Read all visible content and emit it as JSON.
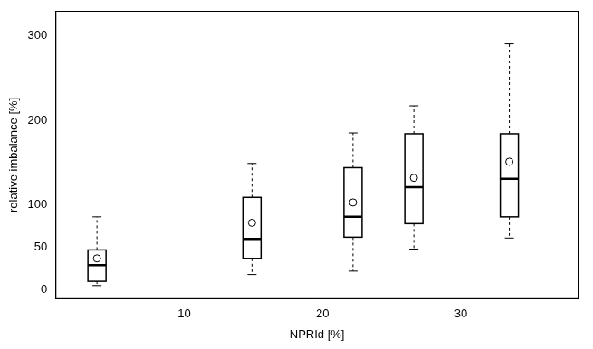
{
  "chart_data": {
    "type": "box",
    "x_label": "NPRId [%]",
    "y_label": "relative imbalance [%]",
    "x": [
      3.7,
      14.9,
      22.2,
      26.6,
      33.5
    ],
    "whisker_low": [
      5,
      18,
      22,
      48,
      61
    ],
    "q1": [
      10,
      37,
      62,
      78,
      86
    ],
    "median": [
      29,
      60,
      86,
      121,
      131
    ],
    "q3": [
      47,
      109,
      144,
      184,
      184
    ],
    "whisker_high": [
      86,
      149,
      185,
      217,
      290
    ],
    "mean": [
      37,
      79,
      103,
      132,
      151
    ],
    "color": "#000000",
    "marker": "circle",
    "xlim": [
      0.7,
      38.5
    ],
    "xticks": [
      10,
      20,
      30
    ],
    "ylim": [
      -11,
      329
    ],
    "yticks": [
      0,
      50,
      100,
      200,
      300
    ],
    "grid": false
  }
}
